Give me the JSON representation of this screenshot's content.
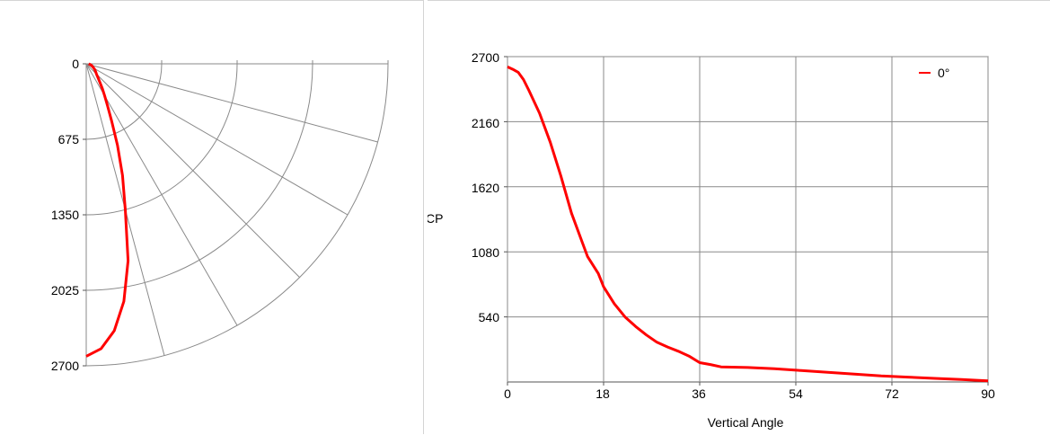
{
  "chart_data": [
    {
      "type": "polar",
      "tick_labels": [
        "0",
        "675",
        "1350",
        "2025",
        "2700"
      ],
      "rmax": 2700,
      "angle_range": [
        0,
        90
      ],
      "radial_spokes_deg": [
        0,
        15,
        30,
        45,
        60,
        75,
        90
      ],
      "grid": true,
      "series": [
        {
          "color": "#ff0000",
          "points": [
            [
              0,
              2615
            ],
            [
              3,
              2550
            ],
            [
              6,
              2400
            ],
            [
              9,
              2150
            ],
            [
              12,
              1800
            ],
            [
              15,
              1350
            ],
            [
              18,
              1050
            ],
            [
              21,
              780
            ],
            [
              24,
              560
            ],
            [
              27,
              420
            ],
            [
              30,
              330
            ],
            [
              33,
              265
            ],
            [
              36,
              210
            ],
            [
              40,
              165
            ],
            [
              45,
              130
            ],
            [
              50,
              110
            ],
            [
              55,
              95
            ],
            [
              60,
              80
            ],
            [
              65,
              66
            ],
            [
              70,
              55
            ],
            [
              75,
              45
            ],
            [
              80,
              36
            ],
            [
              85,
              27
            ],
            [
              90,
              22
            ]
          ]
        }
      ]
    },
    {
      "type": "line",
      "xlabel": "Vertical Angle",
      "ylabel": "CP",
      "xlim": [
        0,
        90
      ],
      "ylim": [
        0,
        2700
      ],
      "x_ticks": [
        0,
        18,
        36,
        54,
        72,
        90
      ],
      "y_ticks": [
        540,
        1080,
        1620,
        2160,
        2700
      ],
      "grid": true,
      "legend": {
        "position": "top-right",
        "entries": [
          "0°"
        ]
      },
      "series": [
        {
          "name": "0°",
          "color": "#ff0000",
          "x": [
            0,
            1,
            2,
            3,
            4,
            6,
            8,
            10,
            12,
            14,
            15,
            17,
            18,
            20,
            22,
            24,
            26,
            28,
            30,
            32,
            34,
            36,
            38,
            40,
            45,
            50,
            55,
            60,
            65,
            70,
            75,
            80,
            85,
            90
          ],
          "y": [
            2615,
            2595,
            2570,
            2510,
            2420,
            2230,
            1990,
            1710,
            1400,
            1160,
            1040,
            900,
            790,
            650,
            540,
            460,
            390,
            330,
            290,
            255,
            215,
            160,
            145,
            125,
            120,
            110,
            95,
            80,
            65,
            50,
            40,
            30,
            20,
            10
          ]
        }
      ]
    }
  ]
}
